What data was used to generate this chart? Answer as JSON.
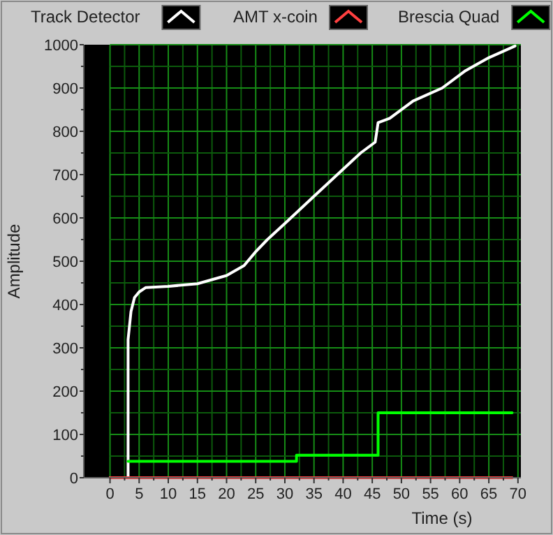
{
  "chart_data": {
    "type": "line",
    "xlabel": "Time (s)",
    "ylabel": "Amplitude",
    "xlim": [
      -4.5,
      70.5
    ],
    "xticks": [
      0,
      {
        "value": 2.5,
        "label": null
      },
      5,
      {
        "value": 7.5,
        "label": null
      },
      10,
      {
        "value": 12.5,
        "label": null
      },
      15,
      {
        "value": 17.5,
        "label": null
      },
      20,
      {
        "value": 22.5,
        "label": null
      },
      25,
      {
        "value": 27.5,
        "label": null
      },
      30,
      {
        "value": 32.5,
        "label": null
      },
      35,
      {
        "value": 37.5,
        "label": null
      },
      40,
      {
        "value": 42.5,
        "label": null
      },
      45,
      {
        "value": 47.5,
        "label": null
      },
      50,
      {
        "value": 52.5,
        "label": null
      },
      55,
      {
        "value": 57.5,
        "label": null
      },
      60,
      {
        "value": 62.5,
        "label": null
      },
      65,
      {
        "value": 67.5,
        "label": null
      },
      70
    ],
    "ylim": [
      0,
      1000
    ],
    "yticks": [
      0,
      {
        "value": 50,
        "label": null
      },
      100,
      {
        "value": 150,
        "label": null
      },
      200,
      {
        "value": 250,
        "label": null
      },
      300,
      {
        "value": 350,
        "label": null
      },
      400,
      {
        "value": 450,
        "label": null
      },
      500,
      {
        "value": 550,
        "label": null
      },
      600,
      {
        "value": 650,
        "label": null
      },
      700,
      {
        "value": 750,
        "label": null
      },
      800,
      {
        "value": 850,
        "label": null
      },
      900,
      {
        "value": 950,
        "label": null
      },
      1000
    ],
    "grid": true,
    "legend": "top",
    "marker": "none",
    "line_style": "solid",
    "series": [
      {
        "name": "Track Detector",
        "color": "#ffffff",
        "x": [
          0,
          3.1,
          3.1,
          3.6,
          4.2,
          5,
          6.1,
          10,
          15,
          20,
          23,
          25,
          27,
          30,
          35,
          39,
          43,
          45.5,
          46,
          48,
          52,
          57,
          61,
          65,
          69.5
        ],
        "values": [
          0,
          0,
          319,
          384,
          416,
          429,
          439,
          442,
          448,
          467,
          490,
          522,
          550,
          587,
          650,
          700,
          750,
          775,
          820,
          830,
          870,
          900,
          940,
          970,
          997
        ]
      },
      {
        "name": "AMT x-coin",
        "color": "#ff4040",
        "x": [
          0,
          69
        ],
        "values": [
          0,
          0
        ]
      },
      {
        "name": "Brescia Quad",
        "color": "#00ff00",
        "x": [
          3.1,
          32,
          32,
          46,
          46,
          69
        ],
        "values": [
          38,
          38,
          52,
          52,
          150,
          150
        ]
      }
    ]
  }
}
